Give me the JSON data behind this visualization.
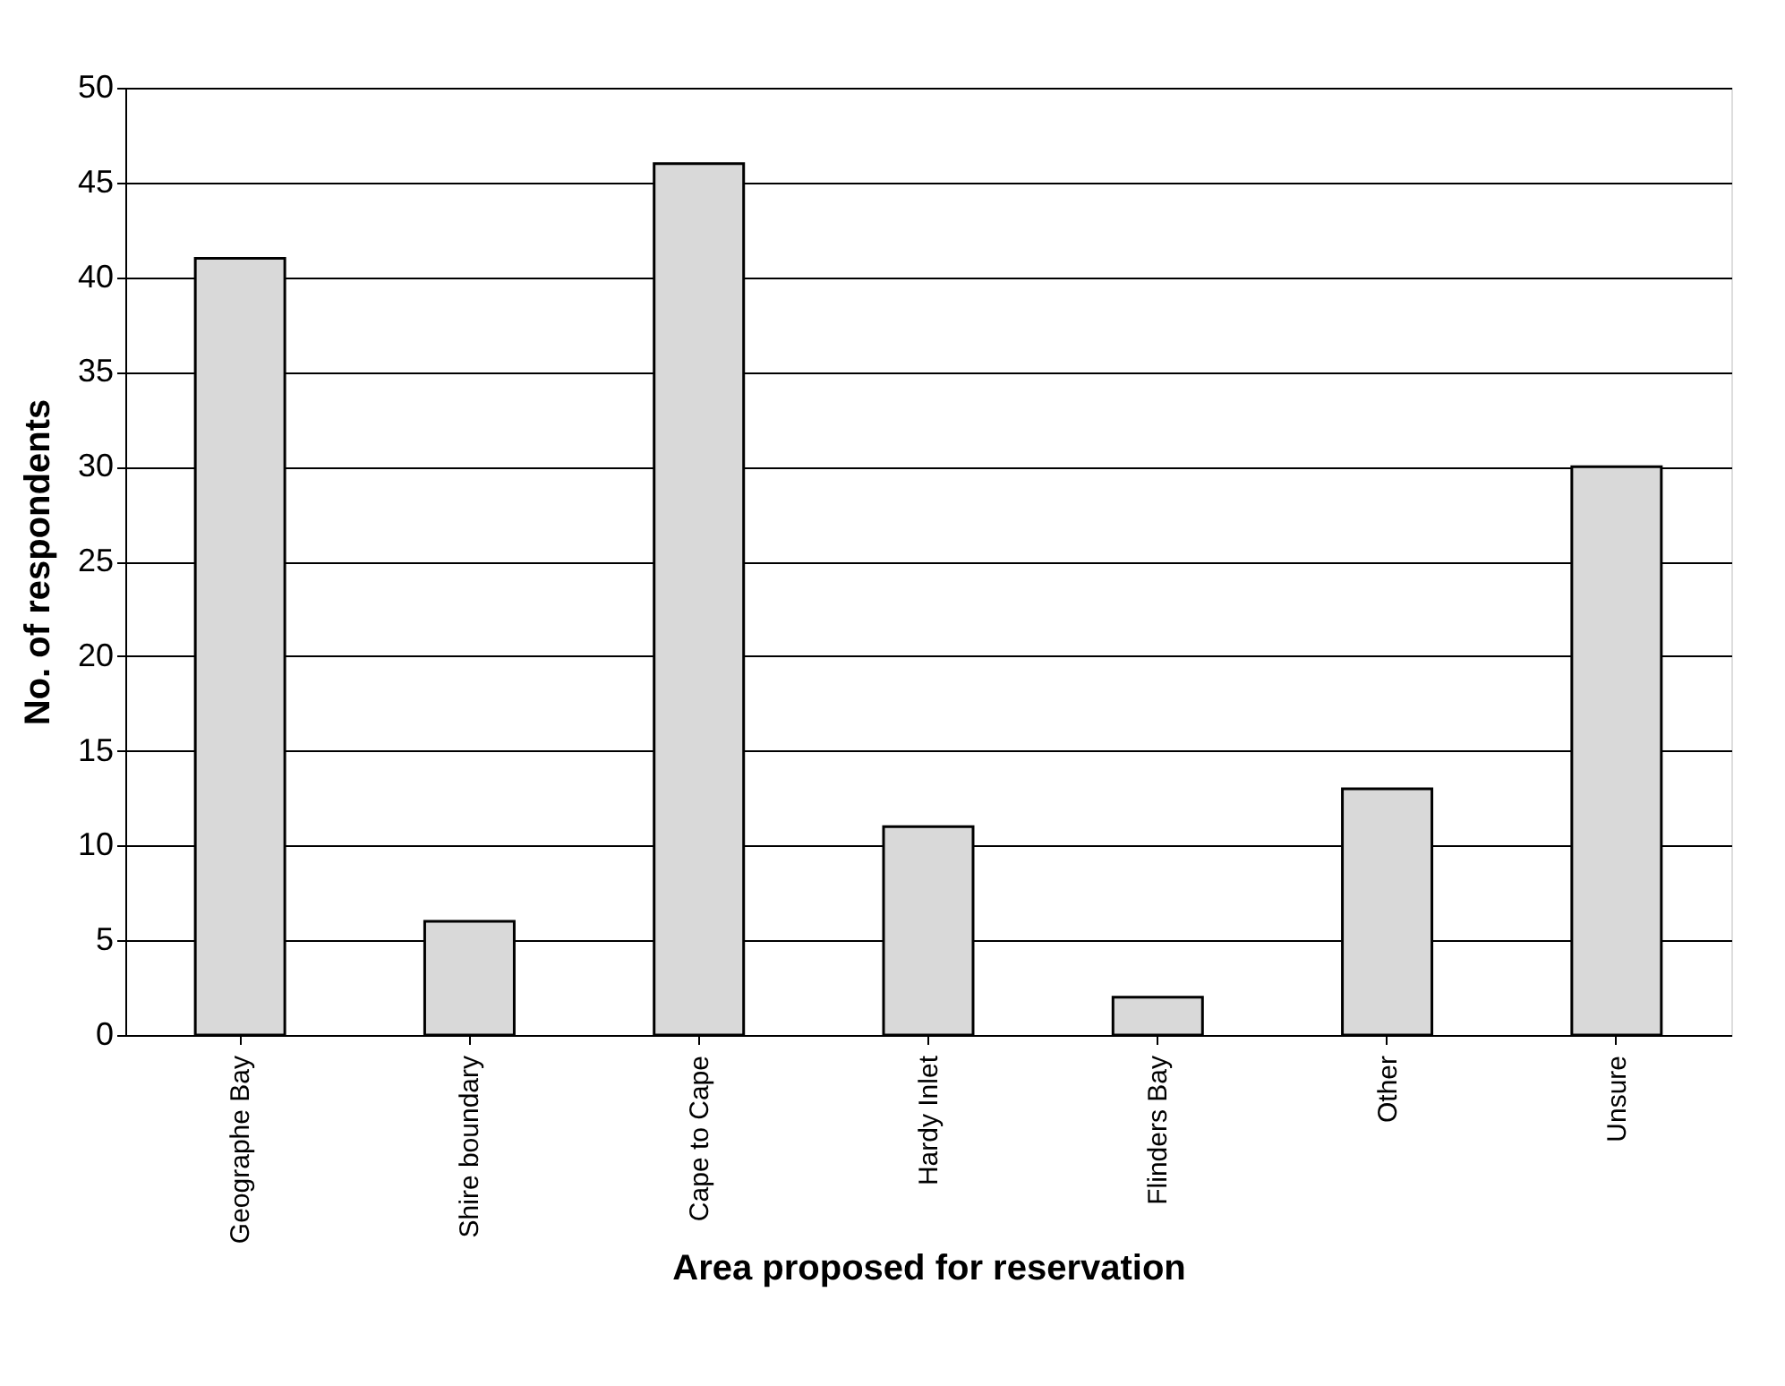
{
  "chart_data": {
    "type": "bar",
    "xlabel": "Area proposed for reservation",
    "ylabel": "No. of respondents",
    "categories": [
      "Geographe Bay",
      "Shire boundary",
      "Cape to Cape",
      "Hardy Inlet",
      "Flinders Bay",
      "Other",
      "Unsure"
    ],
    "values": [
      41,
      6,
      46,
      11,
      2,
      13,
      30
    ],
    "color": "#d9d9d9",
    "ylim": [
      0,
      50
    ],
    "yticks": [
      0,
      5,
      10,
      15,
      20,
      25,
      30,
      35,
      40,
      45,
      50
    ],
    "grid": "y"
  }
}
